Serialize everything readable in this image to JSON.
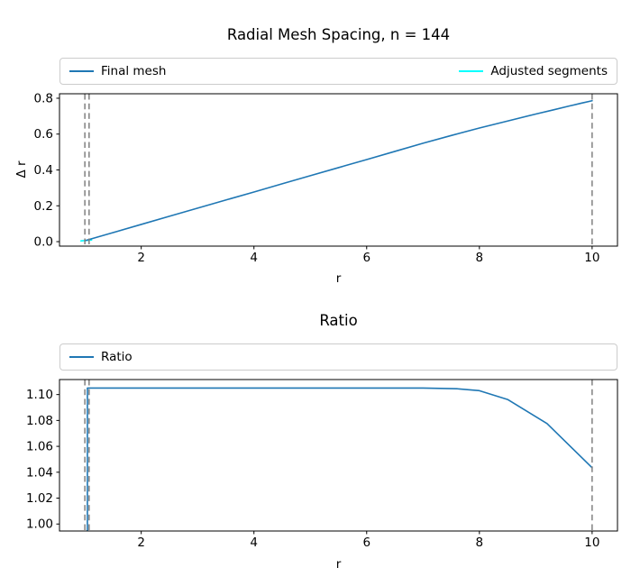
{
  "page": {
    "background": "#ffffff"
  },
  "chart_data": [
    {
      "id": "radial-mesh-spacing",
      "type": "line",
      "title": "Radial Mesh Spacing, n = 144",
      "xlabel": "r",
      "ylabel": "Δ r",
      "xlim": [
        0.55,
        10.45
      ],
      "ylim": [
        -0.025,
        0.825
      ],
      "grid": false,
      "xticks": {
        "values": [
          2,
          4,
          6,
          8,
          10
        ],
        "labels": [
          "2",
          "4",
          "6",
          "8",
          "10"
        ]
      },
      "yticks": {
        "values": [
          0.0,
          0.2,
          0.4,
          0.6,
          0.8
        ],
        "labels": [
          "0.0",
          "0.2",
          "0.4",
          "0.6",
          "0.8"
        ]
      },
      "legend": {
        "position": "top-expand",
        "entries": [
          {
            "label": "Final mesh",
            "color": "#1f77b4"
          },
          {
            "label": "Adjusted segments",
            "color": "#00ffff"
          }
        ]
      },
      "vlines": {
        "x": [
          1.0,
          1.075,
          10.0
        ],
        "color": "#808080",
        "style": "dashed",
        "width": 1.5
      },
      "series": [
        {
          "name": "Adjusted segments",
          "color": "#00ffff",
          "width": 1.6,
          "points": [
            [
              0.93,
              0.004
            ],
            [
              1.12,
              0.009
            ]
          ]
        },
        {
          "name": "Final mesh",
          "color": "#1f77b4",
          "width": 1.6,
          "points": [
            [
              1.0,
              0.005
            ],
            [
              1.5,
              0.0505
            ],
            [
              2,
              0.096
            ],
            [
              2.5,
              0.1415
            ],
            [
              3,
              0.187
            ],
            [
              3.5,
              0.232
            ],
            [
              4,
              0.277
            ],
            [
              4.5,
              0.3225
            ],
            [
              5,
              0.368
            ],
            [
              5.5,
              0.413
            ],
            [
              6,
              0.458
            ],
            [
              6.5,
              0.5035
            ],
            [
              7,
              0.549
            ],
            [
              7.5,
              0.592
            ],
            [
              8,
              0.634
            ],
            [
              8.5,
              0.673
            ],
            [
              9,
              0.712
            ],
            [
              9.3,
              0.734
            ],
            [
              9.6,
              0.757
            ],
            [
              9.8,
              0.772
            ],
            [
              10,
              0.786
            ]
          ]
        }
      ]
    },
    {
      "id": "ratio",
      "type": "line",
      "title": "Ratio",
      "xlabel": "r",
      "ylabel": "",
      "xlim": [
        0.55,
        10.45
      ],
      "ylim": [
        0.9946,
        1.1116
      ],
      "grid": false,
      "xticks": {
        "values": [
          2,
          4,
          6,
          8,
          10
        ],
        "labels": [
          "2",
          "4",
          "6",
          "8",
          "10"
        ]
      },
      "yticks": {
        "values": [
          1.0,
          1.02,
          1.04,
          1.06,
          1.08,
          1.1
        ],
        "labels": [
          "1.00",
          "1.02",
          "1.04",
          "1.06",
          "1.08",
          "1.10"
        ]
      },
      "legend": {
        "position": "top-expand",
        "entries": [
          {
            "label": "Ratio",
            "color": "#1f77b4"
          }
        ]
      },
      "vlines": {
        "x": [
          1.0,
          1.075,
          10.0
        ],
        "color": "#808080",
        "style": "dashed",
        "width": 1.5
      },
      "series": [
        {
          "name": "Ratio",
          "color": "#1f77b4",
          "width": 1.6,
          "points": [
            [
              1.045,
              0.9946
            ],
            [
              1.045,
              1.105
            ],
            [
              2,
              1.105
            ],
            [
              3,
              1.105
            ],
            [
              4,
              1.105
            ],
            [
              5,
              1.105
            ],
            [
              6,
              1.105
            ],
            [
              7,
              1.105
            ],
            [
              7.6,
              1.1045
            ],
            [
              8.0,
              1.103
            ],
            [
              8.5,
              1.0962
            ],
            [
              9.2,
              1.0776
            ],
            [
              10,
              1.0435
            ]
          ]
        }
      ]
    }
  ]
}
